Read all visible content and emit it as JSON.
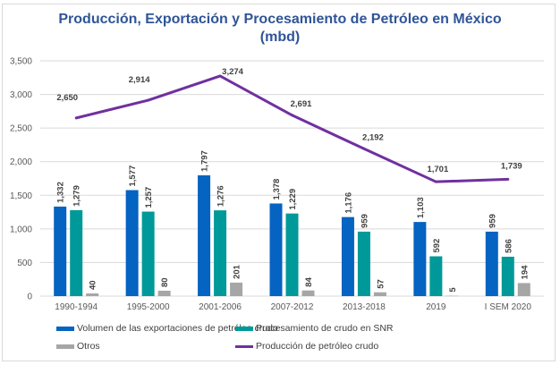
{
  "chart_data": {
    "type": "bar",
    "title": "Producción, Exportación y Procesamiento de Petróleo en México",
    "subtitle": "(mbd)",
    "xlabel": "",
    "ylabel": "",
    "ylim": [
      0,
      3500
    ],
    "yticks": [
      0,
      500,
      1000,
      1500,
      2000,
      2500,
      3000,
      3500
    ],
    "ytick_labels": [
      "0",
      "500",
      "1,000",
      "1,500",
      "2,000",
      "2,500",
      "3,000",
      "3,500"
    ],
    "grid": true,
    "legend_position": "bottom",
    "categories": [
      "1990-1994",
      "1995-2000",
      "2001-2006",
      "2007-2012",
      "2013-2018",
      "2019",
      "I SEM 2020"
    ],
    "series": [
      {
        "name": "Volumen de las exportaciones de petróleo crudo",
        "kind": "bar",
        "color": "#0563c1",
        "values": [
          1332,
          1577,
          1797,
          1378,
          1176,
          1103,
          959
        ],
        "labels": [
          "1,332",
          "1,577",
          "1,797",
          "1,378",
          "1,176",
          "1,103",
          "959"
        ]
      },
      {
        "name": "Procesamiento de crudo en SNR",
        "kind": "bar",
        "color": "#009999",
        "values": [
          1279,
          1257,
          1276,
          1229,
          959,
          592,
          586
        ],
        "labels": [
          "1,279",
          "1,257",
          "1,276",
          "1,229",
          "959",
          "592",
          "586"
        ]
      },
      {
        "name": "Otros",
        "kind": "bar",
        "color": "#a6a6a6",
        "values": [
          40,
          80,
          201,
          84,
          57,
          5,
          194
        ],
        "labels": [
          "40",
          "80",
          "201",
          "84",
          "57",
          "5",
          "194"
        ]
      },
      {
        "name": "Producción de petróleo crudo",
        "kind": "line",
        "color": "#7030a0",
        "values": [
          2650,
          2914,
          3274,
          2691,
          2192,
          1701,
          1739
        ],
        "labels": [
          "2,650",
          "2,914",
          "3,274",
          "2,691",
          "2,192",
          "1,701",
          "1,739"
        ]
      }
    ]
  }
}
